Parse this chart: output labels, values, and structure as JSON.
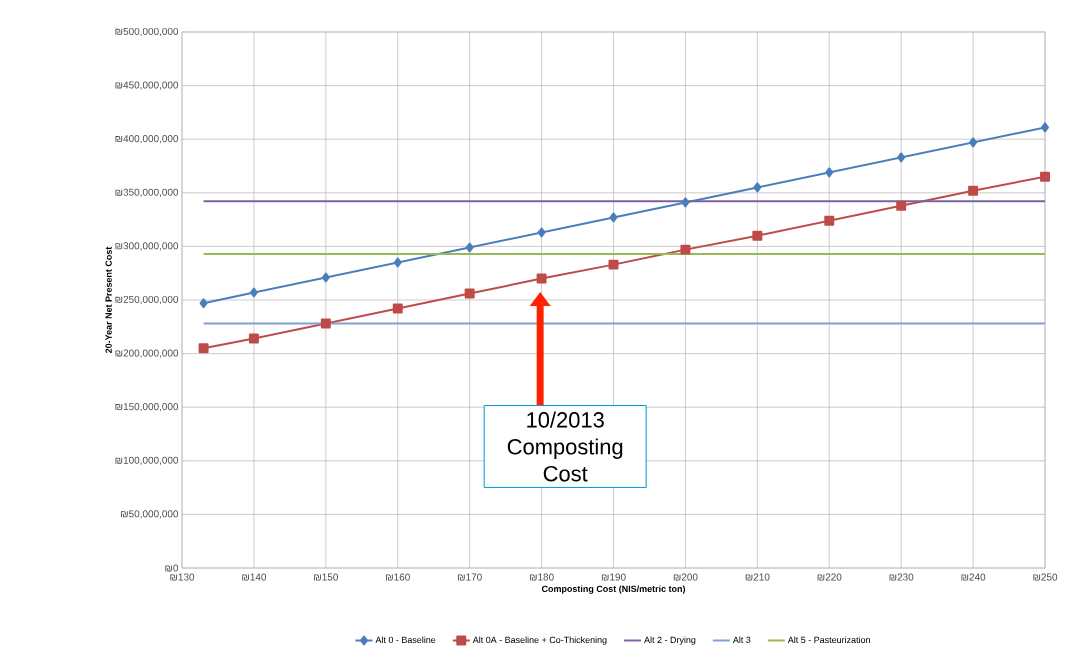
{
  "chart_data": {
    "type": "line",
    "xlabel": "Composting Cost (NIS/metric ton)",
    "ylabel": "20-Year Net Present Cost",
    "xlim": [
      130,
      250
    ],
    "ylim": [
      0,
      500000000
    ],
    "xticks": [
      {
        "value": 130,
        "label": "₪130"
      },
      {
        "value": 140,
        "label": "₪140"
      },
      {
        "value": 150,
        "label": "₪150"
      },
      {
        "value": 160,
        "label": "₪160"
      },
      {
        "value": 170,
        "label": "₪170"
      },
      {
        "value": 180,
        "label": "₪180"
      },
      {
        "value": 190,
        "label": "₪190"
      },
      {
        "value": 200,
        "label": "₪200"
      },
      {
        "value": 210,
        "label": "₪210"
      },
      {
        "value": 220,
        "label": "₪220"
      },
      {
        "value": 230,
        "label": "₪230"
      },
      {
        "value": 240,
        "label": "₪240"
      },
      {
        "value": 250,
        "label": "₪250"
      }
    ],
    "yticks": [
      {
        "value": 0,
        "label": "₪0"
      },
      {
        "value": 50000000,
        "label": "₪50,000,000"
      },
      {
        "value": 100000000,
        "label": "₪100,000,000"
      },
      {
        "value": 150000000,
        "label": "₪150,000,000"
      },
      {
        "value": 200000000,
        "label": "₪200,000,000"
      },
      {
        "value": 250000000,
        "label": "₪250,000,000"
      },
      {
        "value": 300000000,
        "label": "₪300,000,000"
      },
      {
        "value": 350000000,
        "label": "₪350,000,000"
      },
      {
        "value": 400000000,
        "label": "₪400,000,000"
      },
      {
        "value": 450000000,
        "label": "₪450,000,000"
      },
      {
        "value": 500000000,
        "label": "₪500,000,000"
      }
    ],
    "grid": true,
    "legend": "bottom",
    "series": [
      {
        "name": "Alt 0 - Baseline",
        "color": "#4a7ebb",
        "marker": "diamond",
        "x": [
          133,
          140,
          150,
          160,
          170,
          180,
          190,
          200,
          210,
          220,
          230,
          240,
          250
        ],
        "values": [
          247000000,
          257000000,
          271000000,
          285000000,
          299000000,
          313000000,
          327000000,
          341000000,
          355000000,
          369000000,
          383000000,
          397000000,
          411000000
        ]
      },
      {
        "name": "Alt 0A - Baseline + Co-Thickening",
        "color": "#be4b48",
        "marker": "square",
        "x": [
          133,
          140,
          150,
          160,
          170,
          180,
          190,
          200,
          210,
          220,
          230,
          240,
          250
        ],
        "values": [
          205000000,
          214000000,
          228000000,
          242000000,
          256000000,
          270000000,
          283000000,
          297000000,
          310000000,
          324000000,
          338000000,
          352000000,
          365000000
        ]
      },
      {
        "name": "Alt 2 - Drying",
        "color": "#7d60a0",
        "x": [
          133,
          250
        ],
        "values": [
          342000000,
          342000000
        ]
      },
      {
        "name": "Alt 3",
        "color": "#7fa0d4",
        "x": [
          133,
          250
        ],
        "values": [
          228000000,
          228000000
        ]
      },
      {
        "name": "Alt 5 - Pasteurization",
        "color": "#98b954",
        "x": [
          133,
          250
        ],
        "values": [
          293000000,
          293000000
        ]
      }
    ],
    "annotations": [
      "10/2013 Composting Cost"
    ]
  }
}
